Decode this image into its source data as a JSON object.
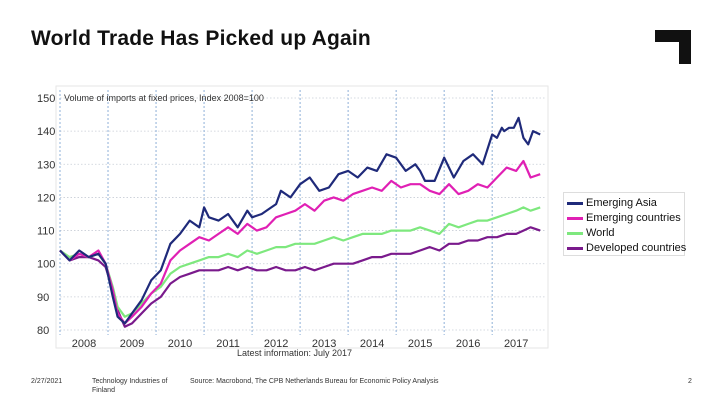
{
  "slide": {
    "title": "World Trade Has Picked up Again",
    "footer_date": "2/27/2021",
    "footer_org": "Technology Industries of Finland",
    "footer_source": "Source: Macrobond, The CPB Netherlands Bureau for Economic Policy Analysis",
    "page_number": "2"
  },
  "chart_data": {
    "type": "line",
    "title": "Volume of imports at fixed prices, Index 2008=100",
    "caption": "Latest information: July 2017",
    "xlabel": "",
    "ylabel": "",
    "x_range": [
      2007.5,
      2017.6
    ],
    "ylim": [
      80,
      150
    ],
    "y_ticks": [
      80,
      90,
      100,
      110,
      120,
      130,
      140,
      150
    ],
    "x_ticks": [
      2008,
      2009,
      2010,
      2011,
      2012,
      2013,
      2014,
      2015,
      2016,
      2017
    ],
    "grid": true,
    "legend_position": "right",
    "series": [
      {
        "name": "Emerging Asia",
        "color": "#1f2a7a",
        "x": [
          2007.5,
          2007.7,
          2007.9,
          2008.1,
          2008.3,
          2008.45,
          2008.6,
          2008.7,
          2008.85,
          2009.0,
          2009.2,
          2009.4,
          2009.6,
          2009.8,
          2010.0,
          2010.2,
          2010.4,
          2010.5,
          2010.6,
          2010.8,
          2011.0,
          2011.2,
          2011.4,
          2011.5,
          2011.7,
          2011.9,
          2012.0,
          2012.1,
          2012.3,
          2012.5,
          2012.7,
          2012.9,
          2013.1,
          2013.3,
          2013.5,
          2013.7,
          2013.9,
          2014.1,
          2014.3,
          2014.5,
          2014.7,
          2014.9,
          2015.0,
          2015.1,
          2015.3,
          2015.5,
          2015.7,
          2015.9,
          2016.1,
          2016.3,
          2016.5,
          2016.6,
          2016.7,
          2016.75,
          2016.85,
          2016.95,
          2017.05,
          2017.15,
          2017.25,
          2017.35,
          2017.5
        ],
        "values": [
          104,
          101,
          104,
          102,
          103,
          100,
          90,
          84,
          82,
          85,
          89,
          95,
          98,
          106,
          109,
          113,
          111,
          117,
          114,
          113,
          115,
          111,
          116,
          114,
          115,
          117,
          118,
          122,
          120,
          124,
          126,
          122,
          123,
          127,
          128,
          126,
          129,
          128,
          133,
          132,
          128,
          130,
          128,
          125,
          125,
          132,
          126,
          131,
          133,
          130,
          139,
          138,
          141,
          140,
          141,
          141,
          144,
          138,
          136,
          140,
          139
        ]
      },
      {
        "name": "Emerging countries",
        "color": "#e020b4",
        "x": [
          2007.5,
          2007.7,
          2007.9,
          2008.1,
          2008.3,
          2008.45,
          2008.6,
          2008.7,
          2008.85,
          2009.0,
          2009.2,
          2009.4,
          2009.6,
          2009.8,
          2010.0,
          2010.2,
          2010.4,
          2010.6,
          2010.8,
          2011.0,
          2011.2,
          2011.4,
          2011.6,
          2011.8,
          2012.0,
          2012.2,
          2012.4,
          2012.6,
          2012.8,
          2013.0,
          2013.2,
          2013.4,
          2013.6,
          2013.8,
          2014.0,
          2014.2,
          2014.4,
          2014.6,
          2014.8,
          2015.0,
          2015.2,
          2015.4,
          2015.6,
          2015.8,
          2016.0,
          2016.2,
          2016.4,
          2016.6,
          2016.8,
          2017.0,
          2017.15,
          2017.3,
          2017.5
        ],
        "values": [
          104,
          101,
          103,
          102,
          104,
          100,
          92,
          85,
          82,
          84,
          87,
          91,
          94,
          101,
          104,
          106,
          108,
          107,
          109,
          111,
          109,
          112,
          110,
          111,
          114,
          115,
          116,
          118,
          116,
          119,
          120,
          119,
          121,
          122,
          123,
          122,
          125,
          123,
          124,
          124,
          122,
          121,
          124,
          121,
          122,
          124,
          123,
          126,
          129,
          128,
          131,
          126,
          127
        ]
      },
      {
        "name": "World",
        "color": "#7ee87e",
        "x": [
          2007.5,
          2007.7,
          2007.9,
          2008.1,
          2008.3,
          2008.45,
          2008.6,
          2008.7,
          2008.85,
          2009.0,
          2009.2,
          2009.4,
          2009.6,
          2009.8,
          2010.0,
          2010.2,
          2010.4,
          2010.6,
          2010.8,
          2011.0,
          2011.2,
          2011.4,
          2011.6,
          2011.8,
          2012.0,
          2012.2,
          2012.4,
          2012.6,
          2012.8,
          2013.0,
          2013.2,
          2013.4,
          2013.6,
          2013.8,
          2014.0,
          2014.2,
          2014.4,
          2014.6,
          2014.8,
          2015.0,
          2015.2,
          2015.4,
          2015.6,
          2015.8,
          2016.0,
          2016.2,
          2016.4,
          2016.6,
          2016.8,
          2017.0,
          2017.15,
          2017.3,
          2017.5
        ],
        "values": [
          104,
          102,
          103,
          102,
          103,
          100,
          93,
          87,
          84,
          85,
          88,
          91,
          93,
          97,
          99,
          100,
          101,
          102,
          102,
          103,
          102,
          104,
          103,
          104,
          105,
          105,
          106,
          106,
          106,
          107,
          108,
          107,
          108,
          109,
          109,
          109,
          110,
          110,
          110,
          111,
          110,
          109,
          112,
          111,
          112,
          113,
          113,
          114,
          115,
          116,
          117,
          116,
          117
        ]
      },
      {
        "name": "Developed countries",
        "color": "#7a1a8c",
        "x": [
          2007.5,
          2007.7,
          2007.9,
          2008.1,
          2008.3,
          2008.45,
          2008.6,
          2008.7,
          2008.85,
          2009.0,
          2009.2,
          2009.4,
          2009.6,
          2009.8,
          2010.0,
          2010.2,
          2010.4,
          2010.6,
          2010.8,
          2011.0,
          2011.2,
          2011.4,
          2011.6,
          2011.8,
          2012.0,
          2012.2,
          2012.4,
          2012.6,
          2012.8,
          2013.0,
          2013.2,
          2013.4,
          2013.6,
          2013.8,
          2014.0,
          2014.2,
          2014.4,
          2014.6,
          2014.8,
          2015.0,
          2015.2,
          2015.4,
          2015.6,
          2015.8,
          2016.0,
          2016.2,
          2016.4,
          2016.6,
          2016.8,
          2017.0,
          2017.15,
          2017.3,
          2017.5
        ],
        "values": [
          104,
          101,
          102,
          102,
          101,
          99,
          92,
          86,
          81,
          82,
          85,
          88,
          90,
          94,
          96,
          97,
          98,
          98,
          98,
          99,
          98,
          99,
          98,
          98,
          99,
          98,
          98,
          99,
          98,
          99,
          100,
          100,
          100,
          101,
          102,
          102,
          103,
          103,
          103,
          104,
          105,
          104,
          106,
          106,
          107,
          107,
          108,
          108,
          109,
          109,
          110,
          111,
          110
        ]
      }
    ]
  }
}
